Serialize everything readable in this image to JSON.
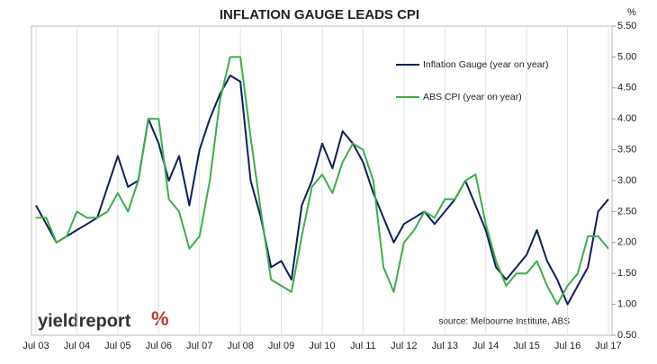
{
  "chart_data": {
    "type": "line",
    "title": "INFLATION GAUGE LEADS CPI",
    "y_unit": "%",
    "source": "source: Melbourne Institute, ABS",
    "logo": {
      "name": "yieldreport",
      "mark": "%"
    },
    "categories": [
      "Jul 03",
      null,
      null,
      null,
      "Jul 04",
      null,
      null,
      null,
      "Jul 05",
      null,
      null,
      null,
      "Jul 06",
      null,
      null,
      null,
      "Jul 07",
      null,
      null,
      null,
      "Jul 08",
      null,
      null,
      null,
      "Jul 09",
      null,
      null,
      null,
      "Jul 10",
      null,
      null,
      null,
      "Jul 11",
      null,
      null,
      null,
      "Jul 12",
      null,
      null,
      null,
      "Jul 13",
      null,
      null,
      null,
      "Jul 14",
      null,
      null,
      null,
      "Jul 15",
      null,
      null,
      null,
      "Jul 16",
      null,
      null,
      null,
      "Jul 17"
    ],
    "series": [
      {
        "name": "Inflation Gauge (year on year)",
        "color": "#0d1f5c",
        "values": [
          2.6,
          2.3,
          2.0,
          2.1,
          2.2,
          2.3,
          2.4,
          2.9,
          3.4,
          2.9,
          3.0,
          4.0,
          3.6,
          3.0,
          3.4,
          2.6,
          3.5,
          4.0,
          4.4,
          4.7,
          4.6,
          3.0,
          2.4,
          1.6,
          1.7,
          1.4,
          2.6,
          3.0,
          3.6,
          3.2,
          3.8,
          3.6,
          3.3,
          2.8,
          2.4,
          2.0,
          2.3,
          2.4,
          2.5,
          2.3,
          2.5,
          2.7,
          3.0,
          2.6,
          2.2,
          1.6,
          1.4,
          1.6,
          1.8,
          2.2,
          1.7,
          1.4,
          1.0,
          1.3,
          1.6,
          2.5,
          2.7
        ]
      },
      {
        "name": "ABS CPI (year on year)",
        "color": "#3cae4a",
        "values": [
          2.4,
          2.4,
          2.0,
          2.1,
          2.5,
          2.4,
          2.4,
          2.5,
          2.8,
          2.5,
          3.0,
          4.0,
          4.0,
          2.7,
          2.5,
          1.9,
          2.1,
          3.0,
          4.3,
          5.0,
          5.0,
          3.7,
          2.5,
          1.4,
          1.3,
          1.2,
          2.1,
          2.9,
          3.1,
          2.8,
          3.3,
          3.6,
          3.5,
          3.0,
          1.6,
          1.2,
          2.0,
          2.2,
          2.5,
          2.4,
          2.7,
          2.7,
          3.0,
          3.1,
          2.3,
          1.7,
          1.3,
          1.5,
          1.5,
          1.7,
          1.3,
          1.0,
          1.3,
          1.5,
          2.1,
          2.1,
          1.9
        ]
      }
    ],
    "ylim": [
      0.5,
      5.5
    ],
    "yticks": [
      {
        "value": 0.5,
        "label": "0.50"
      },
      {
        "value": 1,
        "label": "1.00"
      },
      {
        "value": 1.5,
        "label": "1.50"
      },
      {
        "value": 2,
        "label": "2.00"
      },
      {
        "value": 2.5,
        "label": "2.50"
      },
      {
        "value": 3,
        "label": "3.00"
      },
      {
        "value": 3.5,
        "label": "3.50"
      },
      {
        "value": 4,
        "label": "4.00"
      },
      {
        "value": 4.5,
        "label": "4.50"
      },
      {
        "value": 5,
        "label": "5.00"
      },
      {
        "value": 5.5,
        "label": "5.50"
      }
    ],
    "grid": "x"
  }
}
